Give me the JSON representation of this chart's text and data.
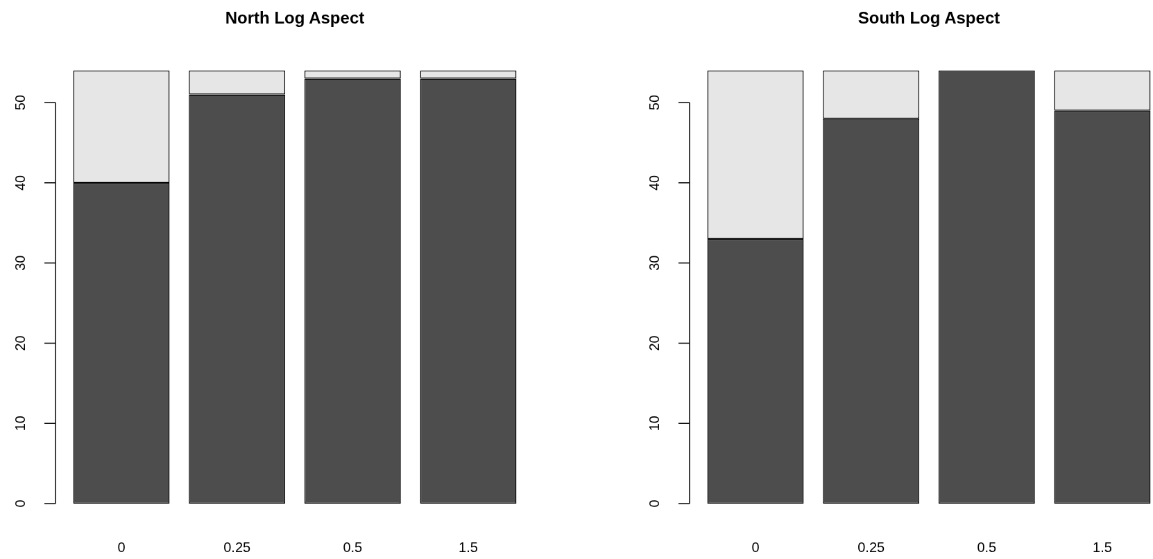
{
  "chart_data": [
    {
      "type": "bar",
      "title": "North Log Aspect",
      "categories": [
        "0",
        "0.25",
        "0.5",
        "1.5"
      ],
      "stacked": true,
      "series": [
        {
          "color": "#4d4d4d",
          "values": [
            40,
            51,
            53,
            53
          ]
        },
        {
          "color": "#e6e6e6",
          "values": [
            14,
            3,
            1,
            1
          ]
        }
      ],
      "ylim": [
        0,
        54
      ],
      "yticks": [
        0,
        10,
        20,
        30,
        40,
        50
      ]
    },
    {
      "type": "bar",
      "title": "South Log Aspect",
      "categories": [
        "0",
        "0.25",
        "0.5",
        "1.5"
      ],
      "stacked": true,
      "series": [
        {
          "color": "#4d4d4d",
          "values": [
            33,
            48,
            54,
            49
          ]
        },
        {
          "color": "#e6e6e6",
          "values": [
            21,
            6,
            0,
            5
          ]
        }
      ],
      "ylim": [
        0,
        54
      ],
      "yticks": [
        0,
        10,
        20,
        30,
        40,
        50
      ]
    }
  ]
}
